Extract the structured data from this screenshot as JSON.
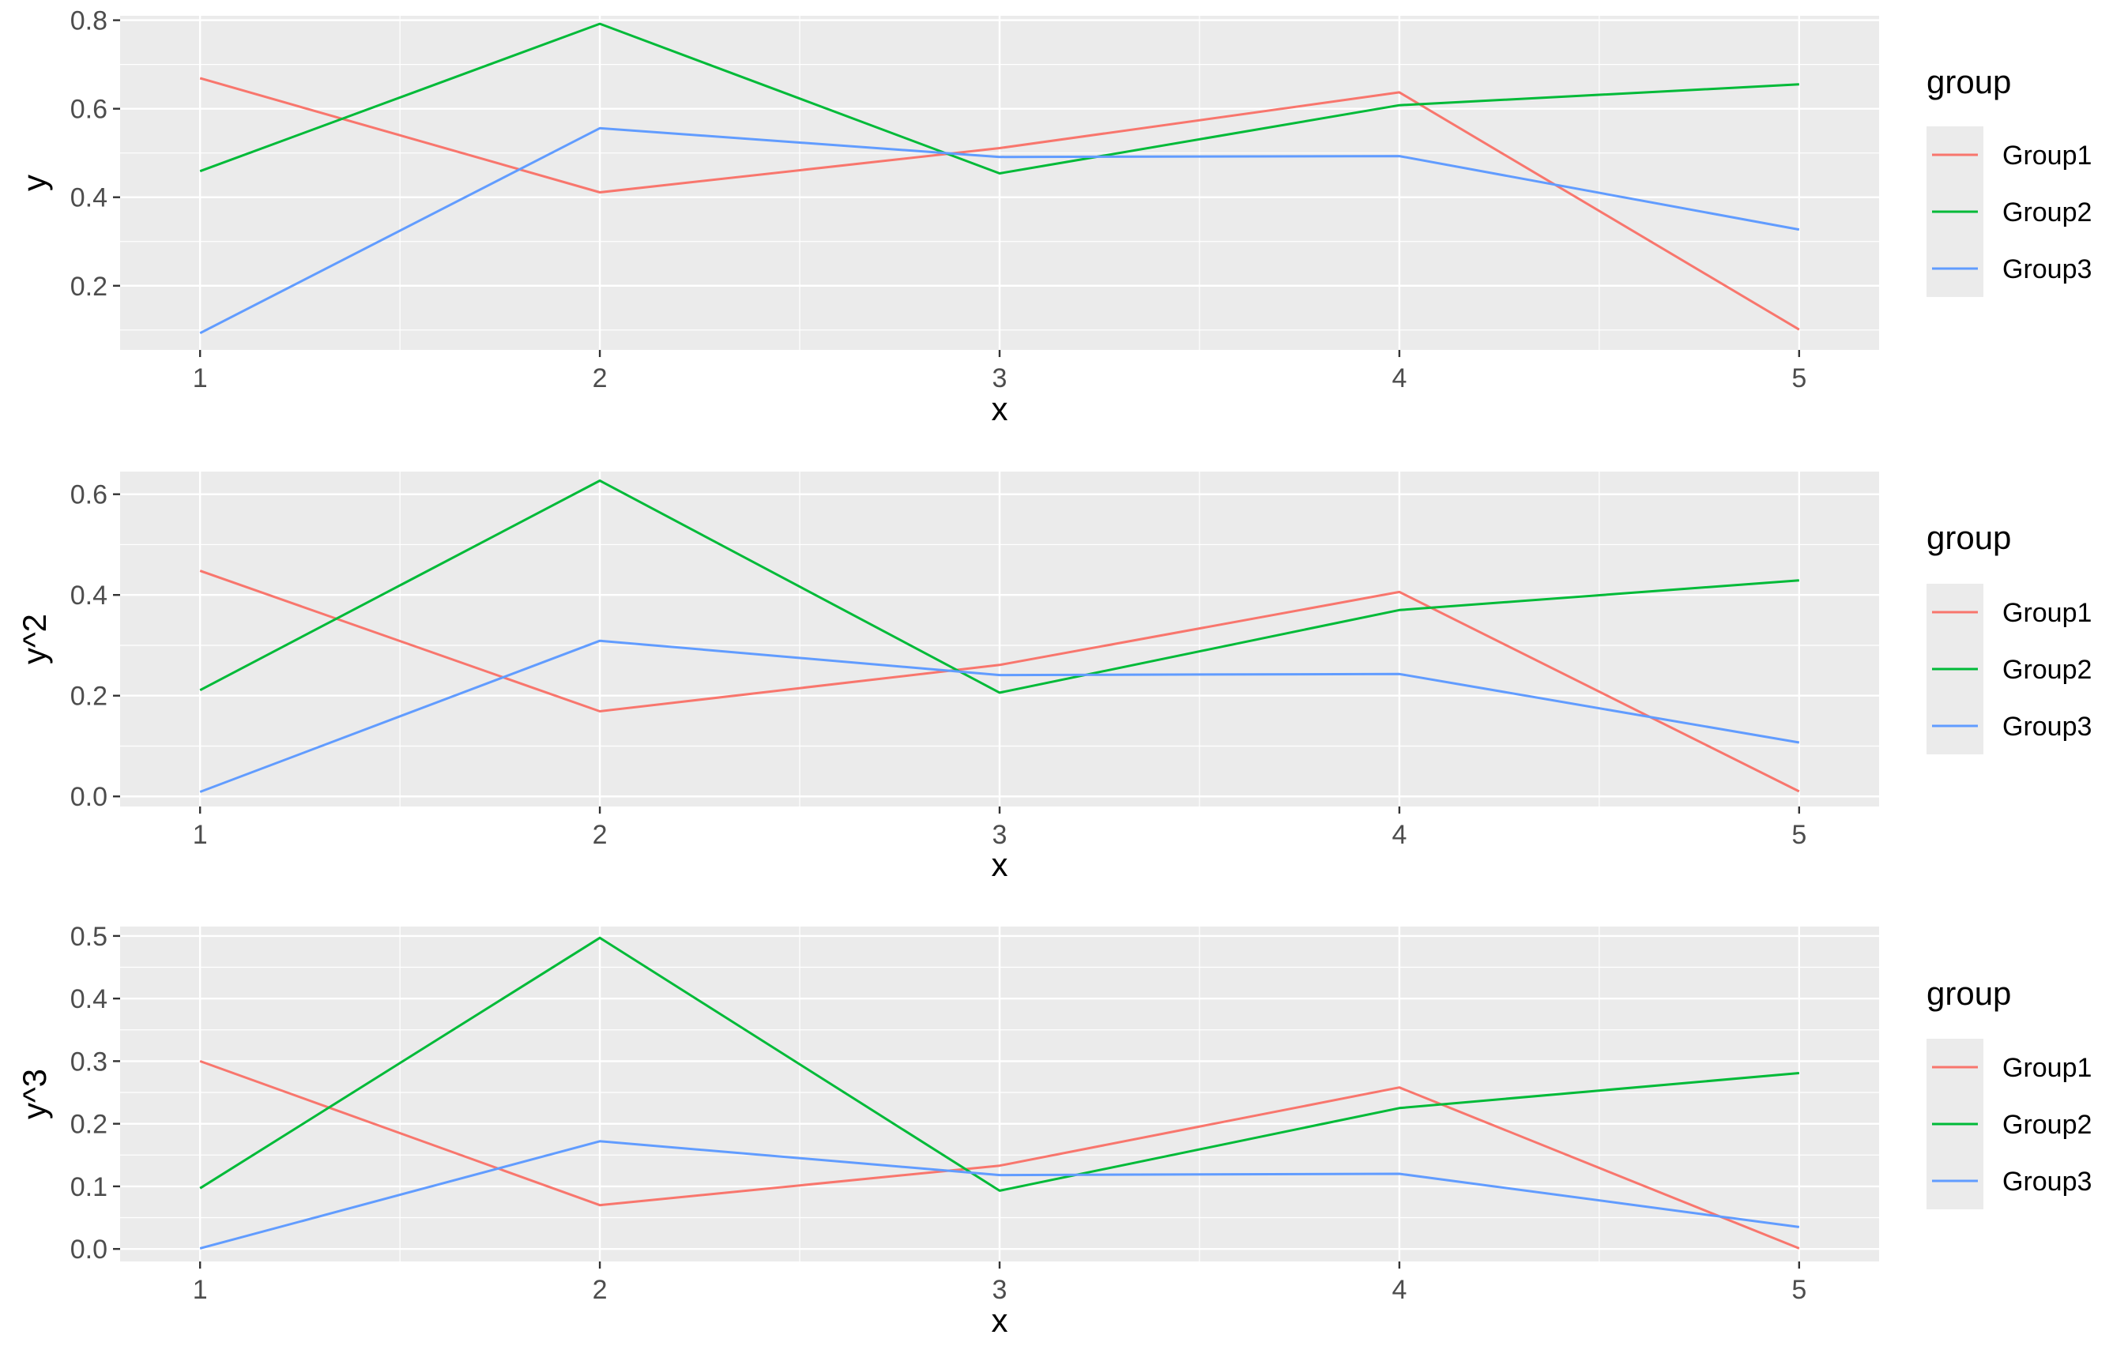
{
  "chart_data": [
    {
      "type": "line",
      "xlabel": "x",
      "ylabel": "y",
      "x": [
        1,
        2,
        3,
        4,
        5
      ],
      "x_ticks": [
        "1",
        "2",
        "3",
        "4",
        "5"
      ],
      "xlim": [
        0.8,
        5.2
      ],
      "y_ticks": [
        "0.2",
        "0.4",
        "0.6",
        "0.8"
      ],
      "y_tick_values": [
        0.2,
        0.4,
        0.6,
        0.8
      ],
      "ylim": [
        0.055,
        0.81
      ],
      "grid": true,
      "legend": {
        "title": "group",
        "position": "right"
      },
      "series": [
        {
          "name": "Group1",
          "color": "#F8766D",
          "values": [
            0.669,
            0.411,
            0.511,
            0.637,
            0.101
          ]
        },
        {
          "name": "Group2",
          "color": "#00BA38",
          "values": [
            0.459,
            0.792,
            0.454,
            0.608,
            0.655
          ]
        },
        {
          "name": "Group3",
          "color": "#619CFF",
          "values": [
            0.093,
            0.556,
            0.491,
            0.493,
            0.327
          ]
        }
      ]
    },
    {
      "type": "line",
      "xlabel": "x",
      "ylabel": "y^2",
      "x": [
        1,
        2,
        3,
        4,
        5
      ],
      "x_ticks": [
        "1",
        "2",
        "3",
        "4",
        "5"
      ],
      "xlim": [
        0.8,
        5.2
      ],
      "y_ticks": [
        "0.0",
        "0.2",
        "0.4",
        "0.6"
      ],
      "y_tick_values": [
        0.0,
        0.2,
        0.4,
        0.6
      ],
      "ylim": [
        -0.02,
        0.645
      ],
      "grid": true,
      "legend": {
        "title": "group",
        "position": "right"
      },
      "series": [
        {
          "name": "Group1",
          "color": "#F8766D",
          "values": [
            0.448,
            0.169,
            0.261,
            0.406,
            0.01
          ]
        },
        {
          "name": "Group2",
          "color": "#00BA38",
          "values": [
            0.211,
            0.627,
            0.206,
            0.37,
            0.429
          ]
        },
        {
          "name": "Group3",
          "color": "#619CFF",
          "values": [
            0.009,
            0.309,
            0.241,
            0.243,
            0.107
          ]
        }
      ]
    },
    {
      "type": "line",
      "xlabel": "x",
      "ylabel": "y^3",
      "x": [
        1,
        2,
        3,
        4,
        5
      ],
      "x_ticks": [
        "1",
        "2",
        "3",
        "4",
        "5"
      ],
      "xlim": [
        0.8,
        5.2
      ],
      "y_ticks": [
        "0.0",
        "0.1",
        "0.2",
        "0.3",
        "0.4",
        "0.5"
      ],
      "y_tick_values": [
        0.0,
        0.1,
        0.2,
        0.3,
        0.4,
        0.5
      ],
      "ylim": [
        -0.02,
        0.515
      ],
      "grid": true,
      "legend": {
        "title": "group",
        "position": "right"
      },
      "series": [
        {
          "name": "Group1",
          "color": "#F8766D",
          "values": [
            0.3,
            0.07,
            0.133,
            0.258,
            0.001
          ]
        },
        {
          "name": "Group2",
          "color": "#00BA38",
          "values": [
            0.097,
            0.497,
            0.093,
            0.225,
            0.281
          ]
        },
        {
          "name": "Group3",
          "color": "#619CFF",
          "values": [
            0.001,
            0.172,
            0.118,
            0.12,
            0.035
          ]
        }
      ]
    }
  ]
}
